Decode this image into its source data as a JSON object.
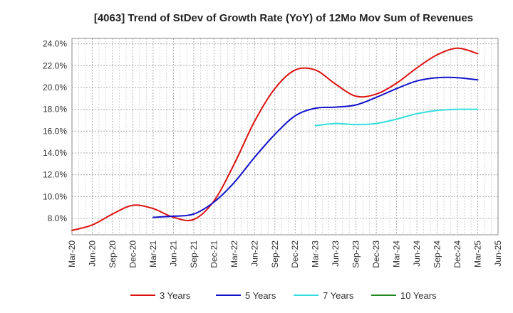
{
  "chart_data": {
    "type": "line",
    "title": "[4063]  Trend of StDev of Growth Rate (YoY) of 12Mo Mov Sum of Revenues",
    "xlabel": "",
    "ylabel": "",
    "x_range": [
      0,
      21
    ],
    "x_ticks": [
      "Mar-20",
      "Jun-20",
      "Sep-20",
      "Dec-20",
      "Mar-21",
      "Jun-21",
      "Sep-21",
      "Dec-21",
      "Mar-22",
      "Jun-22",
      "Sep-22",
      "Dec-22",
      "Mar-23",
      "Jun-23",
      "Sep-23",
      "Dec-23",
      "Mar-24",
      "Jun-24",
      "Sep-24",
      "Dec-24",
      "Mar-25",
      "Jun-25"
    ],
    "ylim": [
      6.5,
      24.5
    ],
    "y_ticks": [
      8,
      10,
      12,
      14,
      16,
      18,
      20,
      22,
      24
    ],
    "y_tick_labels": [
      "8.0%",
      "10.0%",
      "12.0%",
      "14.0%",
      "16.0%",
      "18.0%",
      "20.0%",
      "22.0%",
      "24.0%"
    ],
    "grid": true,
    "legend_position": "bottom",
    "series": [
      {
        "name": "3 Years",
        "color": "#dd1111",
        "points": [
          [
            0,
            6.9
          ],
          [
            1,
            7.4
          ],
          [
            2,
            8.4
          ],
          [
            3,
            9.2
          ],
          [
            4,
            8.9
          ],
          [
            5,
            8.1
          ],
          [
            6,
            7.9
          ],
          [
            7,
            9.6
          ],
          [
            8,
            13.0
          ],
          [
            9,
            16.9
          ],
          [
            10,
            19.9
          ],
          [
            11,
            21.6
          ],
          [
            12,
            21.6
          ],
          [
            13,
            20.3
          ],
          [
            14,
            19.2
          ],
          [
            15,
            19.4
          ],
          [
            16,
            20.4
          ],
          [
            17,
            21.8
          ],
          [
            18,
            23.0
          ],
          [
            19,
            23.6
          ],
          [
            20,
            23.1
          ]
        ]
      },
      {
        "name": "5 Years",
        "color": "#1111cc",
        "points": [
          [
            4,
            8.1
          ],
          [
            5,
            8.2
          ],
          [
            6,
            8.4
          ],
          [
            7,
            9.5
          ],
          [
            8,
            11.3
          ],
          [
            9,
            13.6
          ],
          [
            10,
            15.7
          ],
          [
            11,
            17.4
          ],
          [
            12,
            18.1
          ],
          [
            13,
            18.2
          ],
          [
            14,
            18.4
          ],
          [
            15,
            19.1
          ],
          [
            16,
            19.9
          ],
          [
            17,
            20.6
          ],
          [
            18,
            20.9
          ],
          [
            19,
            20.9
          ],
          [
            20,
            20.7
          ]
        ]
      },
      {
        "name": "7 Years",
        "color": "#33dddd",
        "points": [
          [
            12,
            16.5
          ],
          [
            13,
            16.7
          ],
          [
            14,
            16.6
          ],
          [
            15,
            16.7
          ],
          [
            16,
            17.1
          ],
          [
            17,
            17.6
          ],
          [
            18,
            17.9
          ],
          [
            19,
            18.0
          ],
          [
            20,
            18.0
          ]
        ]
      },
      {
        "name": "10 Years",
        "color": "#228822",
        "points": []
      }
    ]
  }
}
